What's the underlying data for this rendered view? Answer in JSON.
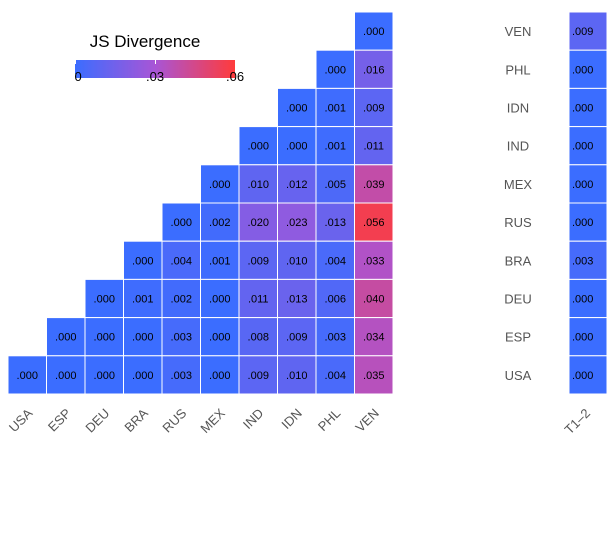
{
  "chart_data": {
    "type": "heatmap",
    "legend": {
      "title": "JS Divergence",
      "min": 0,
      "max": 0.06,
      "ticks": [
        {
          "value": 0,
          "label": "0"
        },
        {
          "value": 0.03,
          "label": ".03"
        },
        {
          "value": 0.06,
          "label": ".06"
        }
      ],
      "color_low": "#3b6dff",
      "color_mid": "#a855d6",
      "color_high": "#ff3b3b"
    },
    "columns": [
      "USA",
      "ESP",
      "DEU",
      "BRA",
      "RUS",
      "MEX",
      "IND",
      "IDN",
      "PHL",
      "VEN"
    ],
    "rows": [
      "VEN",
      "PHL",
      "IDN",
      "IND",
      "MEX",
      "RUS",
      "BRA",
      "DEU",
      "ESP",
      "USA"
    ],
    "cells": [
      [
        null,
        null,
        null,
        null,
        null,
        null,
        null,
        null,
        null,
        0.0
      ],
      [
        null,
        null,
        null,
        null,
        null,
        null,
        null,
        null,
        0.0,
        0.016
      ],
      [
        null,
        null,
        null,
        null,
        null,
        null,
        null,
        0.0,
        0.001,
        0.009
      ],
      [
        null,
        null,
        null,
        null,
        null,
        null,
        0.0,
        0.0,
        0.001,
        0.011
      ],
      [
        null,
        null,
        null,
        null,
        null,
        0.0,
        0.01,
        0.012,
        0.005,
        0.039
      ],
      [
        null,
        null,
        null,
        null,
        0.0,
        0.002,
        0.02,
        0.023,
        0.013,
        0.056
      ],
      [
        null,
        null,
        null,
        0.0,
        0.004,
        0.001,
        0.009,
        0.01,
        0.004,
        0.033
      ],
      [
        null,
        null,
        0.0,
        0.001,
        0.002,
        0.0,
        0.011,
        0.013,
        0.006,
        0.04
      ],
      [
        null,
        0.0,
        0.0,
        0.0,
        0.003,
        0.0,
        0.008,
        0.009,
        0.003,
        0.034
      ],
      [
        0.0,
        0.0,
        0.0,
        0.0,
        0.003,
        0.0,
        0.009,
        0.01,
        0.004,
        0.035
      ]
    ],
    "side_panel": {
      "column_label": "T1–2",
      "values": [
        0.009,
        0.0,
        0.0,
        0.0,
        0.0,
        0.0,
        0.003,
        0.0,
        0.0,
        0.0
      ]
    }
  }
}
